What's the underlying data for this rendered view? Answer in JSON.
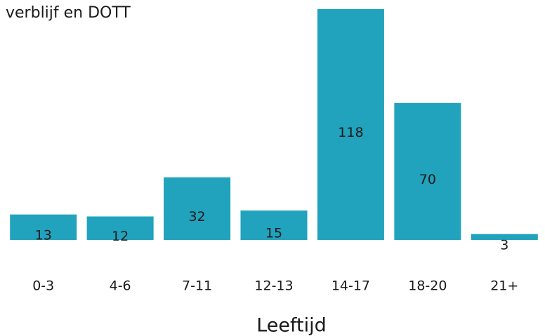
{
  "chart_data": {
    "type": "bar",
    "title": "verblijf en DOTT",
    "x_label": "Leeftijd",
    "categories": [
      "0-3",
      "4-6",
      "7-11",
      "12-13",
      "14-17",
      "18-20",
      "21+"
    ],
    "values": [
      13,
      12,
      32,
      15,
      118,
      70,
      3
    ],
    "color": "#21a2bd"
  }
}
